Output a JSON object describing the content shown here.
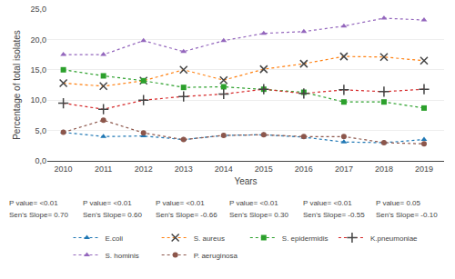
{
  "chart_data": {
    "type": "line",
    "x": [
      2010,
      2011,
      2012,
      2013,
      2014,
      2015,
      2016,
      2017,
      2018,
      2019
    ],
    "series": [
      {
        "name": "E.coli",
        "marker": "triangle",
        "values": [
          4.7,
          4.0,
          4.1,
          3.5,
          4.2,
          4.3,
          3.9,
          3.1,
          3.0,
          3.5
        ]
      },
      {
        "name": "S. aureus",
        "marker": "x",
        "values": [
          12.8,
          12.3,
          13.2,
          15.0,
          13.3,
          15.1,
          16.0,
          17.2,
          17.1,
          16.5
        ]
      },
      {
        "name": "S. epidermidis",
        "marker": "square",
        "values": [
          15.0,
          14.0,
          13.2,
          12.1,
          12.2,
          11.8,
          11.3,
          9.7,
          9.7,
          8.7
        ]
      },
      {
        "name": "K.pneumoniae",
        "marker": "plus",
        "values": [
          9.5,
          8.5,
          10.0,
          10.6,
          11.0,
          11.8,
          11.1,
          11.7,
          11.4,
          11.8
        ]
      },
      {
        "name": "S. hominis",
        "marker": "triangle",
        "values": [
          17.5,
          17.5,
          19.8,
          18.0,
          19.8,
          21.0,
          21.3,
          22.2,
          23.5,
          23.2
        ]
      },
      {
        "name": "P. aeruginosa",
        "marker": "circle",
        "values": [
          4.7,
          6.7,
          4.6,
          3.5,
          4.2,
          4.3,
          4.0,
          4.0,
          3.0,
          2.8
        ]
      }
    ],
    "xlabel": "Years",
    "ylabel": "Percentage of total isolates",
    "xlim": [
      2009.6,
      2019.5
    ],
    "xticks": [
      2010,
      2011,
      2012,
      2013,
      2014,
      2015,
      2016,
      2017,
      2018,
      2019
    ],
    "ylim": [
      0.0,
      25.0
    ],
    "yticks": [
      {
        "value": 0.0,
        "label": "0,0"
      },
      {
        "value": 5.0,
        "label": "5,0"
      },
      {
        "value": 10.0,
        "label": "10,0"
      },
      {
        "value": 15.0,
        "label": "15,0"
      },
      {
        "value": 20.0,
        "label": "20,0"
      },
      {
        "value": 25.0,
        "label": "25,0"
      }
    ],
    "grid": true,
    "line_style": "dotted",
    "legend": "bottom",
    "annotations": [
      "P value= <0.01",
      "Sen's Slope= 0.70",
      "P value= <0.01",
      "Sen's Slope= 0.60",
      "P value= <0.01",
      "Sen's Slope= -0.66",
      "P value= <0.01",
      "Sen's Slope= 0.30",
      "P value= <0.01",
      "Sen's Slope= -0.55",
      "P value= 0.05",
      "Sen's Slope= -0.10"
    ]
  }
}
